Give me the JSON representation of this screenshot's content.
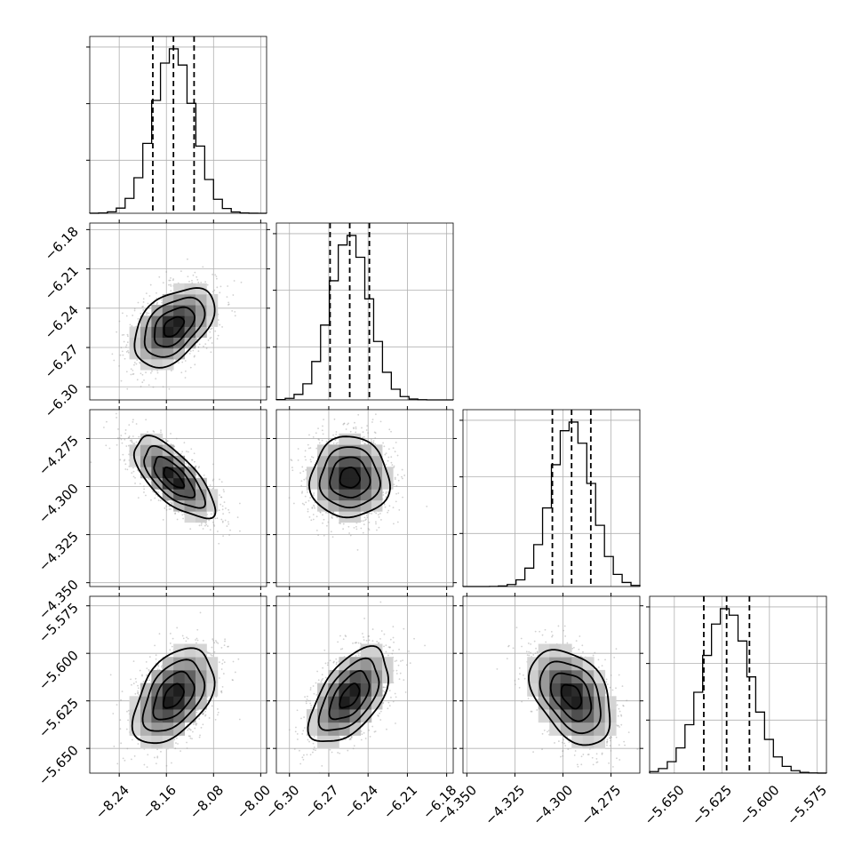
{
  "chart_data": {
    "type": "corner",
    "grid": true,
    "parameters": [
      {
        "range": [
          -8.29,
          -7.99
        ],
        "ticks": [
          -8.24,
          -8.16,
          -8.08,
          -8.0
        ],
        "tick_labels": [
          "−8.24",
          "−8.16",
          "−8.08",
          "−8.00"
        ],
        "mean": -8.148,
        "sd": 0.034,
        "quantiles": [
          -8.183,
          -8.148,
          -8.113
        ]
      },
      {
        "range": [
          -6.31,
          -6.175
        ],
        "ticks": [
          -6.3,
          -6.27,
          -6.24,
          -6.21,
          -6.18
        ],
        "tick_labels": [
          "−6.30",
          "−6.27",
          "−6.24",
          "−6.21",
          "−6.18"
        ],
        "mean": -6.254,
        "sd": 0.015,
        "quantiles": [
          -6.269,
          -6.254,
          -6.239
        ]
      },
      {
        "range": [
          -4.352,
          -4.26
        ],
        "ticks": [
          -4.35,
          -4.325,
          -4.3,
          -4.275
        ],
        "tick_labels": [
          "−4.350",
          "−4.325",
          "−4.300",
          "−4.275"
        ],
        "mean": -4.2955,
        "sd": 0.0105,
        "quantiles": [
          -4.3055,
          -4.2955,
          -4.2855
        ]
      },
      {
        "range": [
          -5.663,
          -5.57
        ],
        "ticks": [
          -5.65,
          -5.625,
          -5.6,
          -5.575
        ],
        "tick_labels": [
          "−5.650",
          "−5.625",
          "−5.600",
          "−5.575"
        ],
        "mean": -5.6225,
        "sd": 0.0125,
        "quantiles": [
          -5.6345,
          -5.6225,
          -5.6105
        ]
      }
    ],
    "correlations": [
      [
        1.0,
        0.45,
        -0.7,
        0.45
      ],
      [
        0.45,
        1.0,
        0.0,
        0.55
      ],
      [
        -0.7,
        0.0,
        1.0,
        -0.4
      ],
      [
        0.45,
        0.55,
        -0.4,
        1.0
      ]
    ],
    "histogram_bins": 20,
    "contour_levels_sigma": [
      0.5,
      1.0,
      1.5,
      2.0
    ],
    "colors": {
      "line": "#000000",
      "points": "#999999",
      "grid": "#b0b0b0"
    }
  }
}
